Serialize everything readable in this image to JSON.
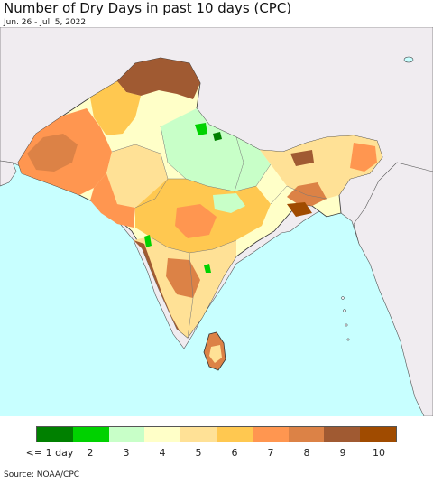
{
  "title": "Number of Dry Days in past 10 days (CPC)",
  "subtitle": "Jun. 26 - Jul. 5, 2022",
  "source": "Source: NOAA/CPC",
  "legend": {
    "labels": [
      "<= 1 day",
      "2",
      "3",
      "4",
      "5",
      "6",
      "7",
      "8",
      "9",
      "10"
    ],
    "colors": [
      "#008000",
      "#00d200",
      "#c8ffc8",
      "#ffffc8",
      "#ffe196",
      "#ffc850",
      "#ff9650",
      "#dc8246",
      "#a05a32",
      "#a04b00"
    ]
  },
  "map": {
    "ocean_color": "#c8ffff",
    "land_color": "#f0ecf0",
    "border_color": "#333333"
  }
}
